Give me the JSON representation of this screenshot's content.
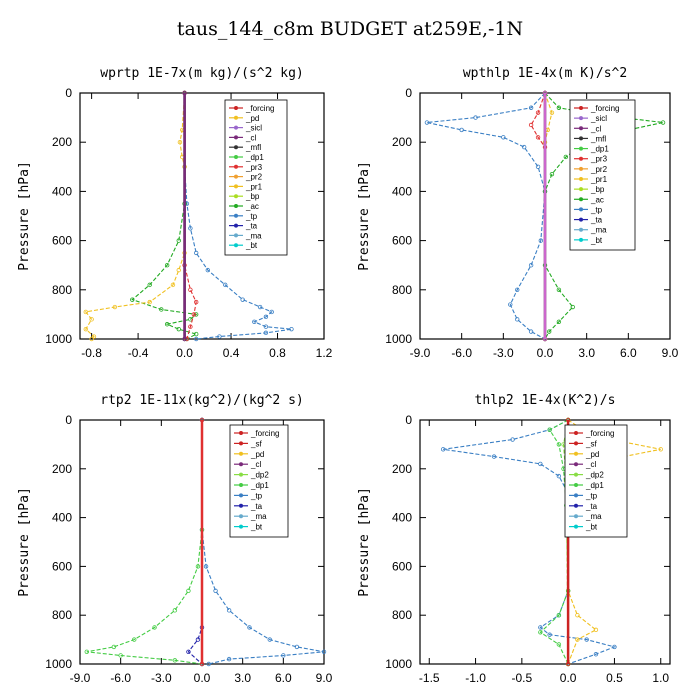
{
  "title": "taus_144_c8m  BUDGET at259E,-1N",
  "chart_data": [
    {
      "type": "line",
      "title": "wprtp  1E-7x(m kg)/(s^2 kg)",
      "ylabel": "Pressure [hPa]",
      "xlim": [
        -0.9,
        1.2
      ],
      "ylim": [
        1000,
        0
      ],
      "xticks": [
        -0.8,
        -0.4,
        0.0,
        0.4,
        0.8,
        1.2
      ],
      "xtick_labels": [
        "-0.8",
        "-0.4",
        "0.0",
        "0.4",
        "0.8",
        "1.2"
      ],
      "yticks": [
        0,
        200,
        400,
        600,
        800,
        1000
      ],
      "ytick_labels": [
        "0",
        "200",
        "400",
        "600",
        "800",
        "1000"
      ],
      "legend": [
        "_forcing",
        "_pd",
        "_sicl",
        "_cl",
        "_mfl",
        "_dp1",
        "_pr3",
        "_pr2",
        "_pr1",
        "_bp",
        "_ac",
        "_tp",
        "_ta",
        "_ma",
        "_bt"
      ],
      "series": [
        {
          "name": "_tp",
          "color": "#3a7fc4",
          "points": [
            [
              0,
              0
            ],
            [
              0,
              300
            ],
            [
              0.02,
              450
            ],
            [
              0.05,
              550
            ],
            [
              0.1,
              650
            ],
            [
              0.2,
              720
            ],
            [
              0.35,
              780
            ],
            [
              0.5,
              840
            ],
            [
              0.65,
              870
            ],
            [
              0.75,
              890
            ],
            [
              0.7,
              910
            ],
            [
              0.6,
              930
            ],
            [
              0.7,
              950
            ],
            [
              0.92,
              960
            ],
            [
              0.7,
              975
            ],
            [
              0.3,
              990
            ],
            [
              0.1,
              1000
            ]
          ]
        },
        {
          "name": "_ac",
          "color": "#22aa22",
          "points": [
            [
              0,
              0
            ],
            [
              0,
              450
            ],
            [
              -0.05,
              600
            ],
            [
              -0.15,
              700
            ],
            [
              -0.3,
              780
            ],
            [
              -0.45,
              840
            ],
            [
              -0.2,
              880
            ],
            [
              0.1,
              900
            ],
            [
              0.05,
              920
            ],
            [
              -0.15,
              940
            ],
            [
              -0.05,
              960
            ],
            [
              0.1,
              980
            ],
            [
              0.02,
              1000
            ]
          ]
        },
        {
          "name": "_pr1",
          "color": "#f0c020",
          "points": [
            [
              0,
              0
            ],
            [
              -0.02,
              150
            ],
            [
              -0.04,
              200
            ],
            [
              -0.02,
              260
            ],
            [
              0,
              300
            ],
            [
              0,
              650
            ],
            [
              -0.05,
              720
            ],
            [
              -0.1,
              780
            ],
            [
              -0.3,
              850
            ],
            [
              -0.6,
              870
            ],
            [
              -0.85,
              890
            ],
            [
              -0.8,
              920
            ],
            [
              -0.85,
              960
            ],
            [
              -0.78,
              990
            ],
            [
              -0.8,
              1000
            ]
          ]
        },
        {
          "name": "_dp1",
          "color": "#e03030",
          "points": [
            [
              0,
              0
            ],
            [
              0,
              700
            ],
            [
              0.05,
              800
            ],
            [
              0.1,
              850
            ],
            [
              0.08,
              900
            ],
            [
              0.05,
              950
            ],
            [
              0.02,
              1000
            ]
          ]
        },
        {
          "name": "_forcing",
          "color": "#333333",
          "points": [
            [
              0,
              0
            ],
            [
              0,
              1000
            ]
          ]
        },
        {
          "name": "_cl",
          "color": "#7a2a7a",
          "points": [
            [
              0,
              0
            ],
            [
              0,
              1000
            ]
          ]
        }
      ]
    },
    {
      "type": "line",
      "title": "wpthlp  1E-4x(m K)/s^2",
      "ylabel": "Pressure [hPa]",
      "xlim": [
        -9,
        9
      ],
      "ylim": [
        1000,
        0
      ],
      "xticks": [
        -9,
        -6,
        -3,
        0,
        3,
        6,
        9
      ],
      "xtick_labels": [
        "-9.0",
        "-6.0",
        "-3.0",
        "0.0",
        "3.0",
        "6.0",
        "9.0"
      ],
      "yticks": [
        0,
        200,
        400,
        600,
        800,
        1000
      ],
      "ytick_labels": [
        "0",
        "200",
        "400",
        "600",
        "800",
        "1000"
      ],
      "legend": [
        "_forcing",
        "_sicl",
        "_cl",
        "_mfl",
        "_dp1",
        "_pr3",
        "_pr2",
        "_pr1",
        "_bp",
        "_ac",
        "_tp",
        "_ta",
        "_ma",
        "_bt"
      ],
      "series": [
        {
          "name": "_tp",
          "color": "#3a7fc4",
          "points": [
            [
              0,
              0
            ],
            [
              -1,
              60
            ],
            [
              -5,
              100
            ],
            [
              -8.5,
              120
            ],
            [
              -6,
              150
            ],
            [
              -3,
              180
            ],
            [
              -1.5,
              220
            ],
            [
              -0.5,
              300
            ],
            [
              0,
              400
            ],
            [
              -0.3,
              600
            ],
            [
              -1,
              700
            ],
            [
              -2,
              800
            ],
            [
              -2.5,
              860
            ],
            [
              -2,
              920
            ],
            [
              -1,
              970
            ],
            [
              0,
              1000
            ]
          ]
        },
        {
          "name": "_ac",
          "color": "#22aa22",
          "points": [
            [
              0,
              0
            ],
            [
              1,
              60
            ],
            [
              4,
              90
            ],
            [
              8.5,
              120
            ],
            [
              6,
              150
            ],
            [
              3,
              200
            ],
            [
              1.5,
              260
            ],
            [
              0.5,
              330
            ],
            [
              0,
              400
            ],
            [
              0,
              700
            ],
            [
              1,
              800
            ],
            [
              2,
              870
            ],
            [
              1,
              930
            ],
            [
              0.3,
              970
            ],
            [
              0,
              1000
            ]
          ]
        },
        {
          "name": "_pr1",
          "color": "#f0c020",
          "points": [
            [
              0,
              0
            ],
            [
              0.5,
              80
            ],
            [
              0.2,
              150
            ],
            [
              0,
              200
            ],
            [
              0,
              1000
            ]
          ]
        },
        {
          "name": "_dp1",
          "color": "#e03030",
          "points": [
            [
              0,
              0
            ],
            [
              -0.5,
              80
            ],
            [
              -1,
              130
            ],
            [
              -0.5,
              180
            ],
            [
              0,
              220
            ],
            [
              0,
              1000
            ]
          ]
        },
        {
          "name": "_forcing",
          "color": "#333333",
          "points": [
            [
              0,
              0
            ],
            [
              0,
              1000
            ]
          ]
        },
        {
          "name": "_sicl",
          "color": "#cc66cc",
          "points": [
            [
              0,
              0
            ],
            [
              0,
              1000
            ]
          ]
        }
      ]
    },
    {
      "type": "line",
      "title": "rtp2  1E-11x(kg^2)/(kg^2 s)",
      "ylabel": "Pressure [hPa]",
      "xlim": [
        -9,
        9
      ],
      "ylim": [
        1000,
        0
      ],
      "xticks": [
        -9,
        -6,
        -3,
        0,
        3,
        6,
        9
      ],
      "xtick_labels": [
        "-9.0",
        "-6.0",
        "-3.0",
        "0.0",
        "3.0",
        "6.0",
        "9.0"
      ],
      "yticks": [
        0,
        200,
        400,
        600,
        800,
        1000
      ],
      "ytick_labels": [
        "0",
        "200",
        "400",
        "600",
        "800",
        "1000"
      ],
      "legend": [
        "_forcing",
        "_sf",
        "_pd",
        "_cl",
        "_dp2",
        "_dp1",
        "_tp",
        "_ta",
        "_ma",
        "_bt"
      ],
      "series": [
        {
          "name": "_tp",
          "color": "#3a7fc4",
          "points": [
            [
              0,
              0
            ],
            [
              0,
              450
            ],
            [
              0.3,
              600
            ],
            [
              1,
              700
            ],
            [
              2,
              780
            ],
            [
              3.5,
              850
            ],
            [
              5,
              900
            ],
            [
              7,
              930
            ],
            [
              9,
              950
            ],
            [
              6,
              965
            ],
            [
              2,
              980
            ],
            [
              0.5,
              1000
            ]
          ]
        },
        {
          "name": "_dp1",
          "color": "#44cc44",
          "points": [
            [
              0,
              0
            ],
            [
              0,
              450
            ],
            [
              -0.3,
              600
            ],
            [
              -1,
              700
            ],
            [
              -2,
              780
            ],
            [
              -3.5,
              850
            ],
            [
              -5,
              900
            ],
            [
              -6.5,
              930
            ],
            [
              -8.5,
              950
            ],
            [
              -6,
              965
            ],
            [
              -2,
              985
            ],
            [
              0,
              1000
            ]
          ]
        },
        {
          "name": "_ta",
          "color": "#2222aa",
          "points": [
            [
              0,
              0
            ],
            [
              0,
              850
            ],
            [
              -0.3,
              900
            ],
            [
              -1,
              950
            ],
            [
              0,
              1000
            ]
          ]
        },
        {
          "name": "_forcing",
          "color": "#e03030",
          "points": [
            [
              0,
              0
            ],
            [
              0,
              1000
            ]
          ]
        }
      ]
    },
    {
      "type": "line",
      "title": "thlp2  1E-4x(K^2)/s",
      "ylabel": "Pressure [hPa]",
      "xlim": [
        -1.6,
        1.1
      ],
      "ylim": [
        1000,
        0
      ],
      "xticks": [
        -1.5,
        -1.0,
        -0.5,
        0.0,
        0.5,
        1.0
      ],
      "xtick_labels": [
        "-1.5",
        "-1.0",
        "-0.5",
        "0.0",
        "0.5",
        "1.0"
      ],
      "yticks": [
        0,
        200,
        400,
        600,
        800,
        1000
      ],
      "ytick_labels": [
        "0",
        "200",
        "400",
        "600",
        "800",
        "1000"
      ],
      "legend": [
        "_forcing",
        "_sf",
        "_pd",
        "_cl",
        "_dp2",
        "_dp1",
        "_tp",
        "_ta",
        "_ma",
        "_bt"
      ],
      "series": [
        {
          "name": "_tp",
          "color": "#3a7fc4",
          "points": [
            [
              0,
              0
            ],
            [
              -0.2,
              40
            ],
            [
              -0.6,
              80
            ],
            [
              -1.35,
              120
            ],
            [
              -0.8,
              150
            ],
            [
              -0.3,
              180
            ],
            [
              -0.1,
              230
            ],
            [
              0,
              300
            ],
            [
              0,
              700
            ],
            [
              -0.1,
              800
            ],
            [
              -0.3,
              850
            ],
            [
              -0.2,
              880
            ],
            [
              0.2,
              900
            ],
            [
              0.5,
              930
            ],
            [
              0.3,
              960
            ],
            [
              0,
              1000
            ]
          ]
        },
        {
          "name": "_pd",
          "color": "#f0c020",
          "points": [
            [
              0,
              0
            ],
            [
              0.2,
              50
            ],
            [
              0.6,
              90
            ],
            [
              1.0,
              120
            ],
            [
              0.6,
              150
            ],
            [
              0.2,
              200
            ],
            [
              0,
              300
            ],
            [
              0,
              700
            ],
            [
              0.1,
              800
            ],
            [
              0.3,
              860
            ],
            [
              0.1,
              900
            ],
            [
              0,
              1000
            ]
          ]
        },
        {
          "name": "_dp1",
          "color": "#44cc44",
          "points": [
            [
              0,
              0
            ],
            [
              -0.2,
              40
            ],
            [
              -0.1,
              100
            ],
            [
              -0.05,
              200
            ],
            [
              -0.02,
              350
            ],
            [
              0,
              700
            ],
            [
              -0.1,
              800
            ],
            [
              -0.3,
              870
            ],
            [
              -0.1,
              920
            ],
            [
              0,
              1000
            ]
          ]
        },
        {
          "name": "_dp2",
          "color": "#88dd44",
          "points": [
            [
              0,
              0
            ],
            [
              -0.05,
              100
            ],
            [
              -0.02,
              250
            ],
            [
              0,
              1000
            ]
          ]
        },
        {
          "name": "_forcing",
          "color": "#cc2222",
          "points": [
            [
              0,
              0
            ],
            [
              0,
              1000
            ]
          ]
        }
      ]
    }
  ]
}
